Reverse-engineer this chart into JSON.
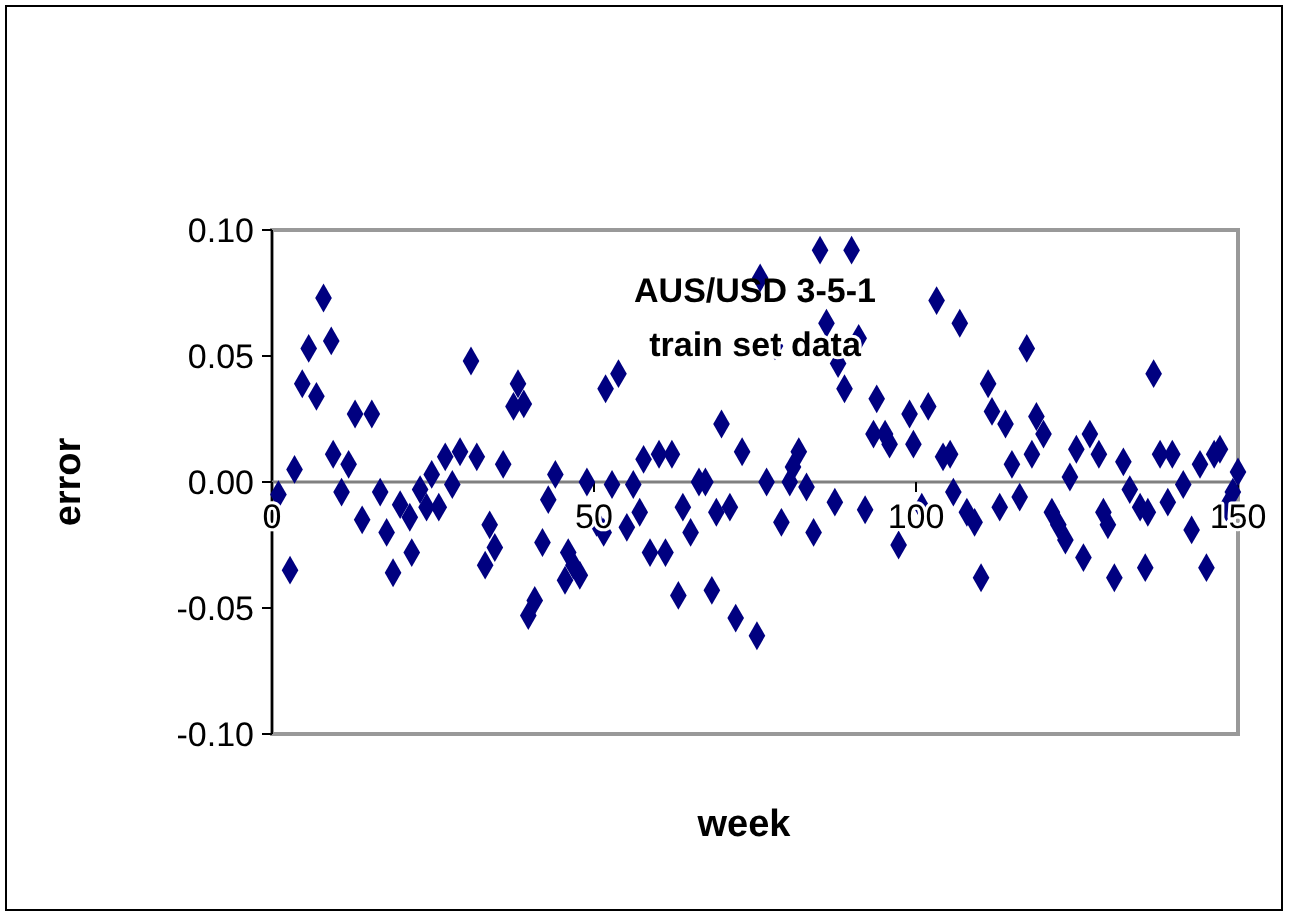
{
  "chart_data": {
    "type": "scatter",
    "title": "AUS/USD 3-5-1",
    "subtitle": "train set data",
    "xlabel": "week",
    "ylabel": "error",
    "xlim": [
      0,
      150
    ],
    "xticks": [
      0,
      50,
      100,
      150
    ],
    "ylim": [
      -0.1,
      0.1
    ],
    "yticks": [
      {
        "value": -0.1,
        "label": "-0.10"
      },
      {
        "value": -0.05,
        "label": "-0.05"
      },
      {
        "value": 0,
        "label": "0.00"
      },
      {
        "value": 0.05,
        "label": "0.05"
      },
      {
        "value": 0.1,
        "label": "0.10"
      }
    ],
    "grid": false,
    "marker": "diamond",
    "series": [
      {
        "color": "#000080",
        "x": [
          1,
          2.8,
          3.5,
          4.7,
          5.7,
          6.9,
          8,
          9.2,
          9.5,
          10.8,
          11.9,
          12.9,
          14,
          15.5,
          16.8,
          17.8,
          18.8,
          19.9,
          21.4,
          21.7,
          23,
          24,
          24.8,
          25.9,
          26.9,
          28,
          29.2,
          30.9,
          31.8,
          33.8,
          33.1,
          34.6,
          35.9,
          37.5,
          38.2,
          39.1,
          39.8,
          40.8,
          42,
          42.9,
          44,
          45.5,
          46,
          46.8,
          47.8,
          48.9,
          51.8,
          53.8,
          50.4,
          52.8,
          51.5,
          56.1,
          55.1,
          57.1,
          57.7,
          58.7,
          60.1,
          61.1,
          62.1,
          63.1,
          63.8,
          65,
          66.3,
          67.3,
          68.3,
          69,
          69.8,
          71.1,
          72,
          73,
          75.3,
          75.8,
          76.8,
          78.1,
          79.1,
          80.4,
          80.9,
          81.8,
          83,
          84.1,
          85.1,
          86.1,
          87.4,
          87.9,
          88.9,
          90,
          91.1,
          92.1,
          93.9,
          93.4,
          95.2,
          95.9,
          97.3,
          99,
          99.6,
          100.9,
          101.9,
          103.2,
          104.2,
          105.3,
          105.8,
          106.8,
          107.9,
          109.1,
          110.1,
          111.2,
          111.8,
          113,
          113.9,
          114.9,
          116.1,
          117.2,
          118,
          118.7,
          119.8,
          121.1,
          122.1,
          123.2,
          123.9,
          124.9,
          126,
          127,
          128.4,
          129.1,
          129.8,
          130.8,
          132.2,
          133.2,
          134.8,
          135.6,
          136,
          136.9,
          137.9,
          139.1,
          139.8,
          141.5,
          142.8,
          144.1,
          145.1,
          146.3,
          147.2,
          148.2,
          149.2,
          150
        ],
        "values": [
          -0.005,
          -0.035,
          0.005,
          0.039,
          0.053,
          0.034,
          0.073,
          0.056,
          0.011,
          -0.004,
          0.007,
          0.027,
          -0.015,
          0.027,
          -0.004,
          -0.02,
          -0.036,
          -0.009,
          -0.014,
          -0.028,
          -0.003,
          -0.01,
          0.003,
          -0.01,
          0.01,
          -0.001,
          0.012,
          0.048,
          0.01,
          -0.017,
          -0.033,
          -0.026,
          0.007,
          0.03,
          0.039,
          0.031,
          -0.053,
          -0.047,
          -0.024,
          -0.007,
          0.003,
          -0.039,
          -0.028,
          -0.033,
          -0.037,
          0,
          0.037,
          0.043,
          -0.016,
          -0.001,
          -0.02,
          -0.001,
          -0.018,
          -0.012,
          0.009,
          -0.028,
          0.011,
          -0.028,
          0.011,
          -0.045,
          -0.01,
          -0.02,
          0,
          0,
          -0.043,
          -0.012,
          0.023,
          -0.01,
          -0.054,
          0.012,
          -0.061,
          0.081,
          0,
          0.054,
          -0.016,
          0,
          0.006,
          0.012,
          -0.002,
          -0.02,
          0.092,
          0.063,
          -0.008,
          0.047,
          0.037,
          0.092,
          0.057,
          -0.011,
          0.033,
          0.019,
          0.019,
          0.015,
          -0.025,
          0.027,
          0.015,
          -0.01,
          0.03,
          0.072,
          0.01,
          0.011,
          -0.004,
          0.063,
          -0.012,
          -0.016,
          -0.038,
          0.039,
          0.028,
          -0.01,
          0.023,
          0.007,
          -0.006,
          0.053,
          0.011,
          0.026,
          0.019,
          -0.012,
          -0.017,
          -0.023,
          0.002,
          0.013,
          -0.03,
          0.019,
          0.011,
          -0.012,
          -0.017,
          -0.038,
          0.008,
          -0.003,
          -0.01,
          -0.034,
          -0.012,
          0.043,
          0.011,
          -0.008,
          0.011,
          -0.001,
          -0.019,
          0.007,
          -0.034,
          0.011,
          0.013,
          -0.01,
          -0.004,
          0.004
        ]
      }
    ]
  }
}
